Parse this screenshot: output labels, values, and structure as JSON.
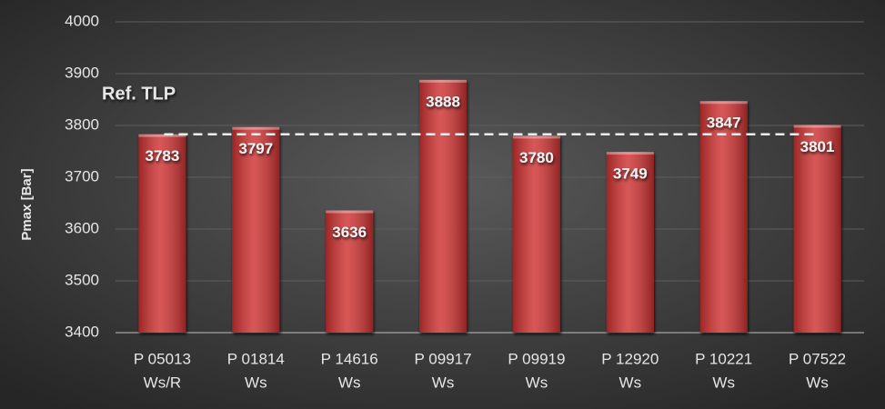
{
  "chart_data": {
    "type": "bar",
    "y_label": "Pmax [Bar]",
    "categories": [
      [
        "P 05013",
        "Ws/R"
      ],
      [
        "P 01814",
        "Ws"
      ],
      [
        "P 14616",
        "Ws"
      ],
      [
        "P 09917",
        "Ws"
      ],
      [
        "P 09919",
        "Ws"
      ],
      [
        "P 12920",
        "Ws"
      ],
      [
        "P 10221",
        "Ws"
      ],
      [
        "P 07522",
        "Ws"
      ]
    ],
    "values": [
      3783,
      3797,
      3636,
      3888,
      3780,
      3749,
      3847,
      3801
    ],
    "color": "#cf3033",
    "ylim": [
      3400,
      4000
    ],
    "yticks": [
      3400,
      3500,
      3600,
      3700,
      3800,
      3900,
      4000
    ],
    "grid": true,
    "reference": {
      "label": "Ref. TLP",
      "value": 3783
    }
  }
}
